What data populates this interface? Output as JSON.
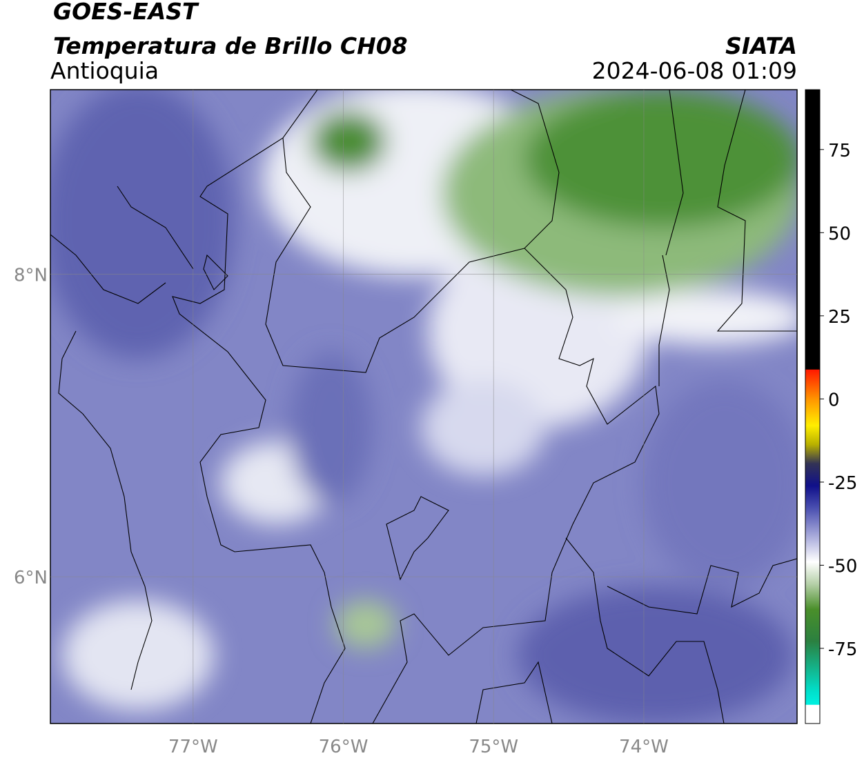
{
  "header": {
    "title": "GOES-EAST",
    "subtitle": "Temperatura de Brillo CH08",
    "region": "Antioquia",
    "source": "SIATA",
    "datetime": "2024-06-08 01:09"
  },
  "map": {
    "lonlim": [
      -77.95,
      -72.98
    ],
    "latlim": [
      5.03,
      9.22
    ],
    "lon_ticks": [
      {
        "value": -77,
        "label": "77°W"
      },
      {
        "value": -76,
        "label": "76°W"
      },
      {
        "value": -75,
        "label": "75°W"
      },
      {
        "value": -74,
        "label": "74°W"
      }
    ],
    "lat_ticks": [
      {
        "value": 8,
        "label": "8°N"
      },
      {
        "value": 6,
        "label": "6°N"
      }
    ]
  },
  "colorbar": {
    "lim": [
      -97.6,
      93
    ],
    "ticks": [
      75,
      50,
      25,
      0,
      -25,
      -50,
      -75
    ]
  }
}
